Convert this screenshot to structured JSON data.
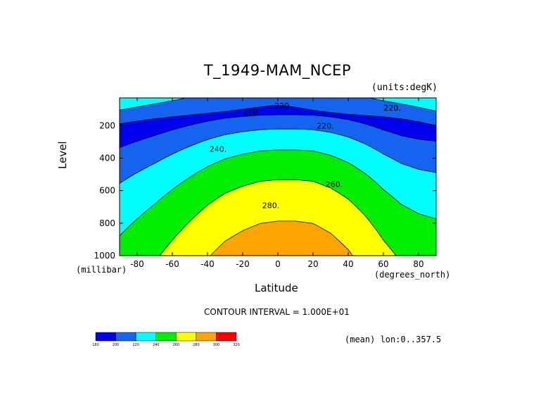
{
  "chart_data": {
    "type": "heatmap",
    "title": "T_1949-MAM_NCEP",
    "units_label": "(units:degK)",
    "xlabel": "Latitude",
    "xlabel_units": "(degrees_north)",
    "ylabel": "Level",
    "ylabel_units": "(millibar)",
    "xlim": [
      -90,
      90
    ],
    "ylim": [
      1000,
      30
    ],
    "x_ticks": [
      -80,
      -60,
      -40,
      -20,
      0,
      20,
      40,
      60,
      80
    ],
    "y_ticks": [
      200,
      400,
      600,
      800,
      1000
    ],
    "contour_interval_text": "CONTOUR INTERVAL = 1.000E+01",
    "footer_text": "(mean) lon:0..357.5",
    "contour_labels": [
      {
        "text": "220",
        "lat": 3,
        "level": 78
      },
      {
        "text": "200",
        "lat": -15,
        "level": 115
      },
      {
        "text": "220",
        "lat": 65,
        "level": 90
      },
      {
        "text": "220",
        "lat": 27,
        "level": 200
      },
      {
        "text": "240",
        "lat": -34,
        "level": 345
      },
      {
        "text": "260",
        "lat": 32,
        "level": 560
      },
      {
        "text": "280",
        "lat": -4,
        "level": 690
      }
    ],
    "levels": [
      180,
      200,
      220,
      240,
      260,
      280,
      300,
      320
    ],
    "colors": [
      "#0000ee",
      "#1464f0",
      "#00ffff",
      "#00ee00",
      "#ffff00",
      "#ffa400",
      "#ff0000"
    ],
    "colorbar_labels": [
      "180",
      "200",
      "220",
      "240",
      "260",
      "280",
      "300",
      "320"
    ],
    "approx_profile": {
      "lat": [
        -90,
        -80,
        -70,
        -60,
        -50,
        -40,
        -30,
        -20,
        -10,
        0,
        10,
        20,
        30,
        40,
        50,
        60,
        70,
        80,
        90
      ],
      "surface_temp_1000mb": [
        246,
        252,
        258,
        265,
        272,
        279,
        285,
        289,
        292,
        293,
        293,
        292,
        288,
        282,
        274,
        265,
        258,
        254,
        252
      ]
    }
  }
}
